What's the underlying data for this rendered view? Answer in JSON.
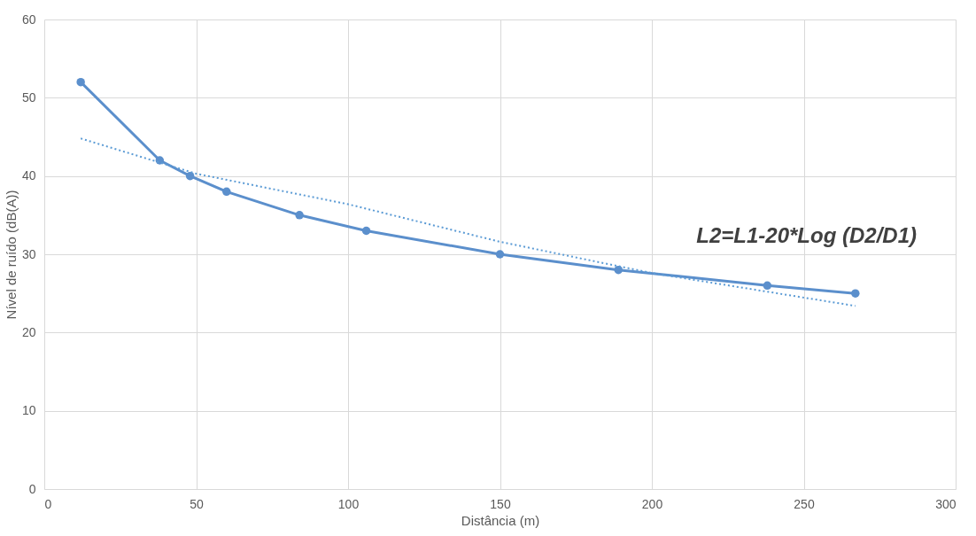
{
  "chart_data": {
    "type": "line",
    "xlabel": "Distância (m)",
    "ylabel": "Nível de ruído (dB(A))",
    "annotations": [
      "L2=L1-20*Log (D2/D1)"
    ],
    "xlim": [
      0,
      300
    ],
    "xticks": [
      0,
      50,
      100,
      150,
      200,
      250,
      300
    ],
    "ylim": [
      0,
      60
    ],
    "yticks": [
      0,
      10,
      20,
      30,
      40,
      50,
      60
    ],
    "grid": true,
    "series": [
      {
        "color": "#5b8fcc",
        "marker": "circle",
        "line_style": "solid",
        "x": [
          12,
          38,
          48,
          60,
          84,
          106,
          150,
          189,
          238,
          267
        ],
        "values": [
          52,
          42,
          40,
          38,
          35,
          33,
          30,
          28,
          26,
          25
        ]
      },
      {
        "color": "#5b9bd5",
        "marker": "none",
        "line_style": "dotted",
        "x": [
          12,
          50,
          100,
          150,
          200,
          267
        ],
        "values": [
          44.8,
          40.3,
          36.4,
          31.6,
          27.6,
          23.4
        ]
      }
    ]
  }
}
